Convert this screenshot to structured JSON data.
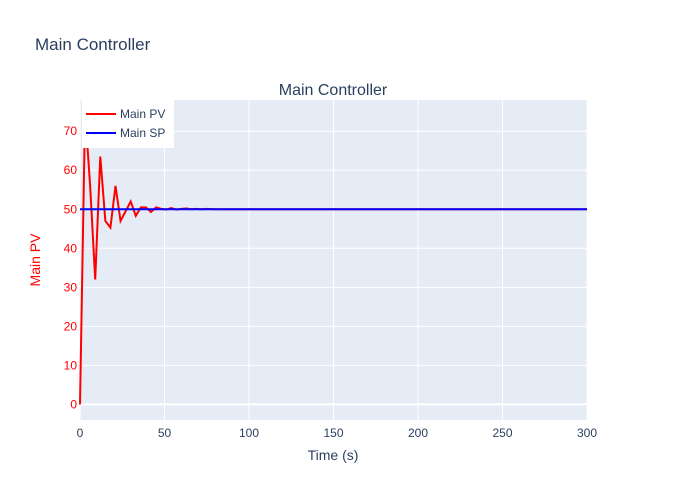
{
  "page_title": "Main Controller",
  "chart_data": {
    "type": "line",
    "title": "Main Controller",
    "xlabel": "Time (s)",
    "ylabel": "Main PV",
    "xlim": [
      0,
      300
    ],
    "ylim": [
      -4,
      78
    ],
    "xticks": [
      0,
      50,
      100,
      150,
      200,
      250,
      300
    ],
    "yticks": [
      0,
      10,
      20,
      30,
      40,
      50,
      60,
      70
    ],
    "grid": true,
    "legend_position": "top-left",
    "series": [
      {
        "name": "Main PV",
        "color": "#ff0000",
        "x": [
          0,
          3,
          6,
          9,
          12,
          15,
          18,
          21,
          24,
          27,
          30,
          33,
          36,
          39,
          42,
          45,
          48,
          51,
          54,
          57,
          60,
          63,
          66,
          69,
          72,
          75,
          80,
          90,
          100,
          150,
          200,
          250,
          300
        ],
        "y": [
          0,
          75,
          56,
          32,
          63.5,
          47,
          45.3,
          56,
          47,
          49.5,
          52,
          48.3,
          50.5,
          50.5,
          49.3,
          50.5,
          50.1,
          49.9,
          50.3,
          49.9,
          50.1,
          50.2,
          50,
          50.1,
          50,
          50.1,
          50,
          50,
          50,
          50,
          50,
          50,
          50
        ]
      },
      {
        "name": "Main SP",
        "color": "#0000ff",
        "x": [
          0,
          300
        ],
        "y": [
          50,
          50
        ]
      }
    ]
  }
}
